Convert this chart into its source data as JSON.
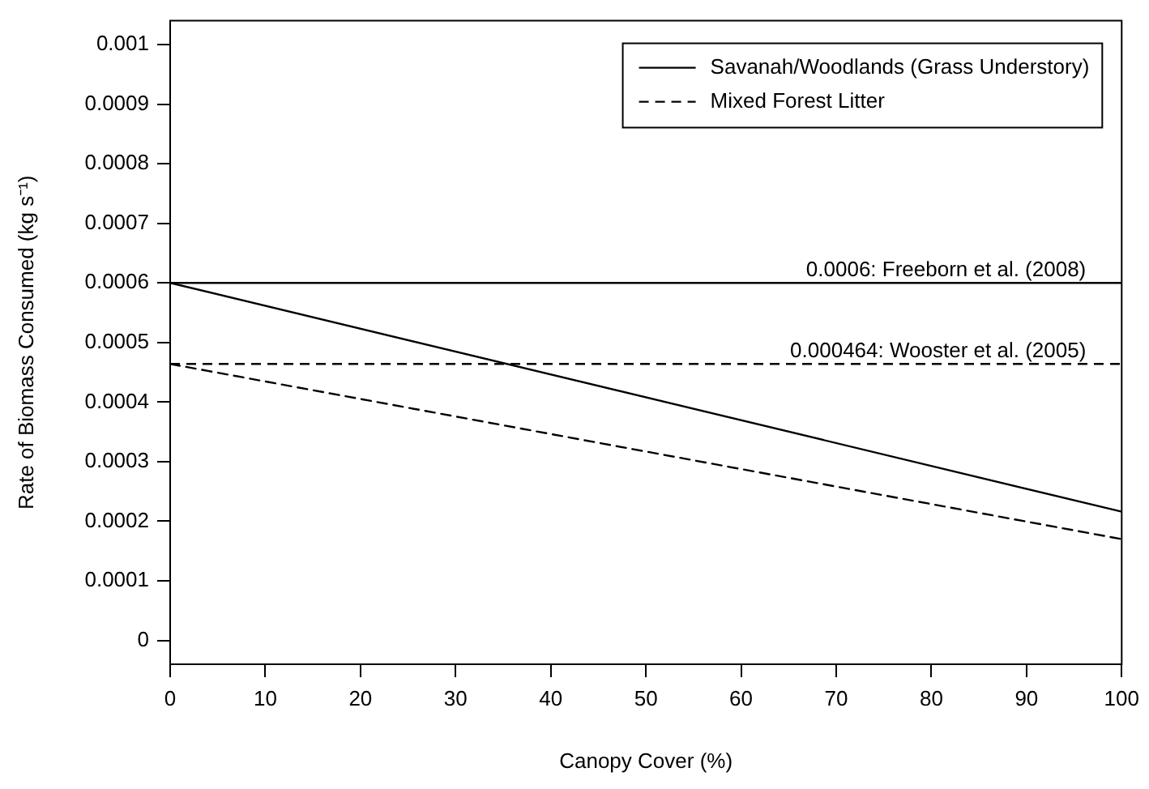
{
  "chart_data": {
    "type": "line",
    "xlabel": "Canopy Cover (%)",
    "ylabel": "Rate of Biomass Consumed (kg s⁻¹)",
    "x": [
      0,
      100
    ],
    "series": [
      {
        "name": "Savanah/Woodlands (Grass Understory)",
        "color": "#000000",
        "values": [
          0.0006,
          0.000216
        ],
        "line_style": "solid"
      },
      {
        "name": "Mixed Forest Litter",
        "color": "#000000",
        "values": [
          0.000464,
          0.00017
        ],
        "line_style": "dashed"
      }
    ],
    "xlim": [
      0,
      100
    ],
    "xticks": [
      0,
      10,
      20,
      30,
      40,
      50,
      60,
      70,
      80,
      90,
      100
    ],
    "ylim": [
      -4e-05,
      0.00104
    ],
    "yticks": [
      0,
      0.0001,
      0.0002,
      0.0003,
      0.0004,
      0.0005,
      0.0006,
      0.0007,
      0.0008,
      0.0009,
      0.001
    ],
    "ref_lines": [
      {
        "axis": "y",
        "value": 0.0006,
        "label": "0.0006: Freeborn et al. (2008)",
        "color": "#000000",
        "line_style": "solid"
      },
      {
        "axis": "y",
        "value": 0.000464,
        "label": "0.000464: Wooster et al. (2005)",
        "color": "#000000",
        "line_style": "dashed"
      }
    ],
    "grid": false,
    "legend": "top right",
    "marker": "none"
  }
}
